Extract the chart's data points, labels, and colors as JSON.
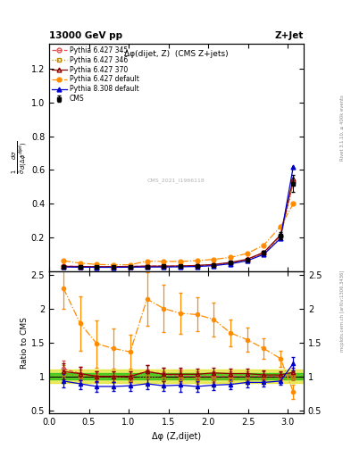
{
  "title_top": "13000 GeV pp",
  "title_right": "Z+Jet",
  "plot_title": "Δφ(dijet, Z)  (CMS Z+jets)",
  "xlabel": "Δφ (Z,dijet)",
  "ylabel_main": "$\\frac{1}{\\bar{\\sigma}}\\frac{d\\sigma}{d(\\Delta\\phi^{dijet})}$",
  "ylabel_ratio": "Ratio to CMS",
  "watermark": "CMS_2021_I1966118",
  "right_label": "Rivet 3.1.10, ≥ 400k events",
  "right_label2": "mcplots.cern.ch [arXiv:1306.3436]",
  "x_pts": [
    0.18,
    0.39,
    0.6,
    0.81,
    1.02,
    1.23,
    1.44,
    1.65,
    1.86,
    2.07,
    2.28,
    2.49,
    2.7,
    2.91,
    3.07
  ],
  "y_cms": [
    0.027,
    0.027,
    0.027,
    0.027,
    0.028,
    0.028,
    0.029,
    0.03,
    0.033,
    0.038,
    0.05,
    0.068,
    0.11,
    0.21,
    0.52
  ],
  "y_cms_err": [
    0.003,
    0.003,
    0.003,
    0.003,
    0.003,
    0.003,
    0.003,
    0.003,
    0.003,
    0.004,
    0.005,
    0.007,
    0.012,
    0.022,
    0.05
  ],
  "y_py6_345": [
    0.03,
    0.028,
    0.027,
    0.027,
    0.028,
    0.03,
    0.03,
    0.03,
    0.033,
    0.038,
    0.05,
    0.068,
    0.11,
    0.21,
    0.53
  ],
  "y_py6_346": [
    0.028,
    0.027,
    0.027,
    0.027,
    0.027,
    0.028,
    0.028,
    0.029,
    0.032,
    0.037,
    0.048,
    0.065,
    0.105,
    0.205,
    0.52
  ],
  "y_py6_370": [
    0.029,
    0.028,
    0.027,
    0.027,
    0.028,
    0.03,
    0.03,
    0.031,
    0.034,
    0.04,
    0.052,
    0.071,
    0.112,
    0.215,
    0.55
  ],
  "y_py6_def": [
    0.062,
    0.048,
    0.04,
    0.038,
    0.038,
    0.06,
    0.058,
    0.058,
    0.063,
    0.07,
    0.082,
    0.105,
    0.155,
    0.265,
    0.4
  ],
  "y_py8_def": [
    0.025,
    0.024,
    0.023,
    0.023,
    0.024,
    0.025,
    0.025,
    0.026,
    0.028,
    0.033,
    0.044,
    0.062,
    0.1,
    0.195,
    0.62
  ],
  "ratio_py6_345": [
    1.11,
    1.04,
    1.0,
    1.0,
    1.0,
    1.07,
    1.03,
    1.0,
    1.0,
    1.0,
    1.0,
    1.0,
    1.0,
    1.0,
    1.02
  ],
  "ratio_py6_346": [
    1.04,
    1.0,
    1.0,
    1.0,
    0.96,
    1.0,
    0.97,
    0.97,
    0.97,
    0.97,
    0.96,
    0.96,
    0.96,
    0.98,
    1.0
  ],
  "ratio_py6_370": [
    1.07,
    1.04,
    1.0,
    1.0,
    1.0,
    1.07,
    1.03,
    1.03,
    1.03,
    1.05,
    1.04,
    1.04,
    1.02,
    1.02,
    1.06
  ],
  "ratio_py6_def": [
    2.3,
    1.78,
    1.48,
    1.41,
    1.36,
    2.14,
    2.0,
    1.93,
    1.91,
    1.84,
    1.64,
    1.54,
    1.41,
    1.26,
    0.77
  ],
  "ratio_py8_def": [
    0.93,
    0.89,
    0.85,
    0.85,
    0.86,
    0.89,
    0.86,
    0.87,
    0.85,
    0.87,
    0.88,
    0.91,
    0.91,
    0.93,
    1.19
  ],
  "ratio_py6_345_err": [
    0.12,
    0.1,
    0.08,
    0.08,
    0.08,
    0.1,
    0.1,
    0.1,
    0.08,
    0.08,
    0.07,
    0.07,
    0.07,
    0.06,
    0.06
  ],
  "ratio_py6_346_err": [
    0.12,
    0.1,
    0.08,
    0.08,
    0.08,
    0.1,
    0.1,
    0.1,
    0.08,
    0.08,
    0.07,
    0.07,
    0.07,
    0.06,
    0.06
  ],
  "ratio_py6_370_err": [
    0.12,
    0.1,
    0.08,
    0.08,
    0.08,
    0.1,
    0.1,
    0.1,
    0.08,
    0.08,
    0.07,
    0.07,
    0.07,
    0.06,
    0.06
  ],
  "ratio_py6_def_err": [
    0.3,
    0.4,
    0.35,
    0.3,
    0.25,
    0.4,
    0.35,
    0.3,
    0.25,
    0.25,
    0.2,
    0.18,
    0.15,
    0.12,
    0.1
  ],
  "ratio_py8_def_err": [
    0.1,
    0.08,
    0.08,
    0.07,
    0.07,
    0.08,
    0.08,
    0.1,
    0.08,
    0.07,
    0.07,
    0.07,
    0.06,
    0.06,
    0.1
  ],
  "cms_band_inner_color": "#00bb00",
  "cms_band_outer_color": "#dddd00",
  "cms_band_inner": 0.05,
  "cms_band_outer": 0.1,
  "color_py6_345": "#e05050",
  "color_py6_346": "#b8860b",
  "color_py6_370": "#8b0000",
  "color_py6_def": "#ff8c00",
  "color_py8_def": "#0000cc",
  "ylim_main": [
    0.0,
    1.35
  ],
  "ylim_ratio": [
    0.45,
    2.55
  ],
  "xlim": [
    0.0,
    3.2
  ],
  "yticks_main": [
    0.2,
    0.4,
    0.6,
    0.8,
    1.0,
    1.2
  ],
  "yticks_ratio": [
    0.5,
    1.0,
    1.5,
    2.0,
    2.5
  ],
  "ytick_labels_ratio": [
    "0.5",
    "1",
    "1.5",
    "2",
    "2.5"
  ]
}
